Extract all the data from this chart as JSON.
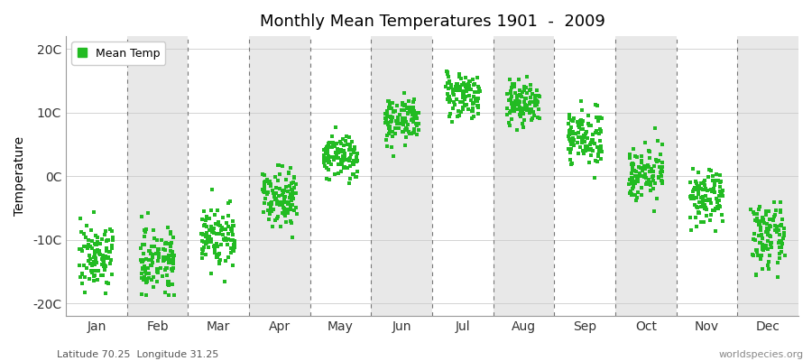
{
  "title": "Monthly Mean Temperatures 1901  -  2009",
  "ylabel": "Temperature",
  "subtitle": "Latitude 70.25  Longitude 31.25",
  "watermark": "worldspecies.org",
  "legend_label": "Mean Temp",
  "dot_color": "#22bb22",
  "background_color": "#ffffff",
  "band_color": "#e8e8e8",
  "ylim": [
    -22,
    22
  ],
  "yticks": [
    -20,
    -10,
    0,
    10,
    20
  ],
  "ytick_labels": [
    "-20C",
    "-10C",
    "0C",
    "10C",
    "20C"
  ],
  "months": [
    "Jan",
    "Feb",
    "Mar",
    "Apr",
    "May",
    "Jun",
    "Jul",
    "Aug",
    "Sep",
    "Oct",
    "Nov",
    "Dec"
  ],
  "monthly_means": [
    -12.5,
    -13.0,
    -9.5,
    -3.0,
    3.0,
    9.0,
    13.0,
    11.5,
    6.0,
    0.5,
    -3.5,
    -9.5
  ],
  "monthly_stds": [
    2.5,
    2.5,
    2.5,
    2.2,
    1.8,
    1.8,
    1.8,
    1.8,
    2.0,
    2.0,
    2.0,
    2.5
  ],
  "n_years": 109,
  "random_seed": 7,
  "jitter": 0.28
}
